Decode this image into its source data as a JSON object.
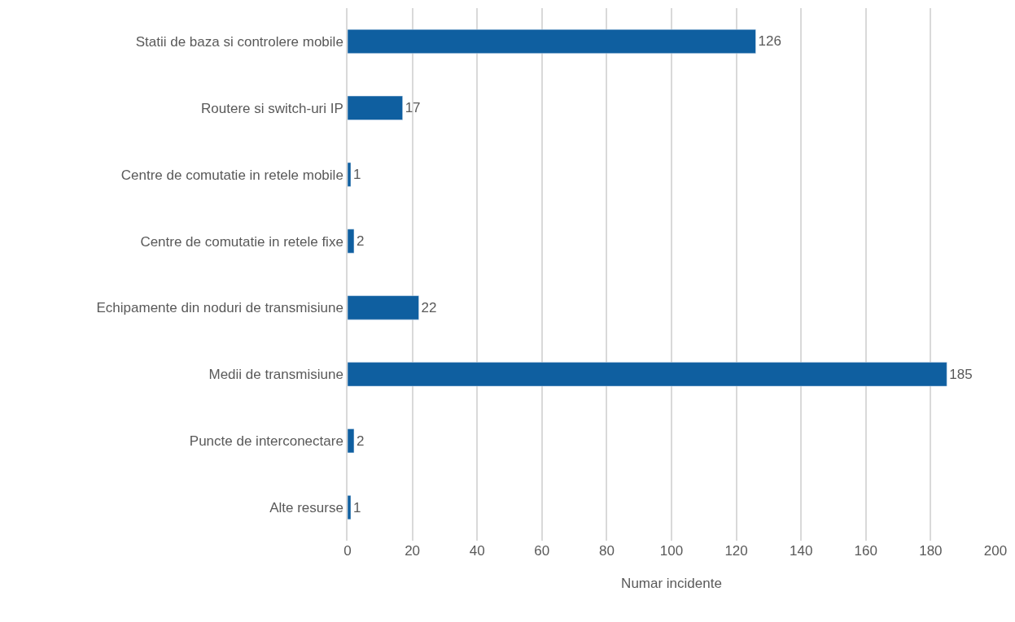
{
  "chart_data": {
    "type": "bar",
    "orientation": "horizontal",
    "xlabel": "Numar incidente",
    "categories": [
      "Statii de baza si controlere mobile",
      "Routere si switch-uri IP",
      "Centre de comutatie in retele mobile",
      "Centre de comutatie in retele fixe",
      "Echipamente din noduri de transmisiune",
      "Medii de transmisiune",
      "Puncte de interconectare",
      "Alte resurse"
    ],
    "values": [
      126,
      17,
      1,
      2,
      22,
      185,
      2,
      1
    ],
    "color": "#0f5fa0",
    "xlim": [
      0,
      200
    ],
    "xticks": [
      0,
      20,
      40,
      60,
      80,
      100,
      120,
      140,
      160,
      180,
      200
    ],
    "grid": "x",
    "data_labels": true,
    "legend": false
  }
}
